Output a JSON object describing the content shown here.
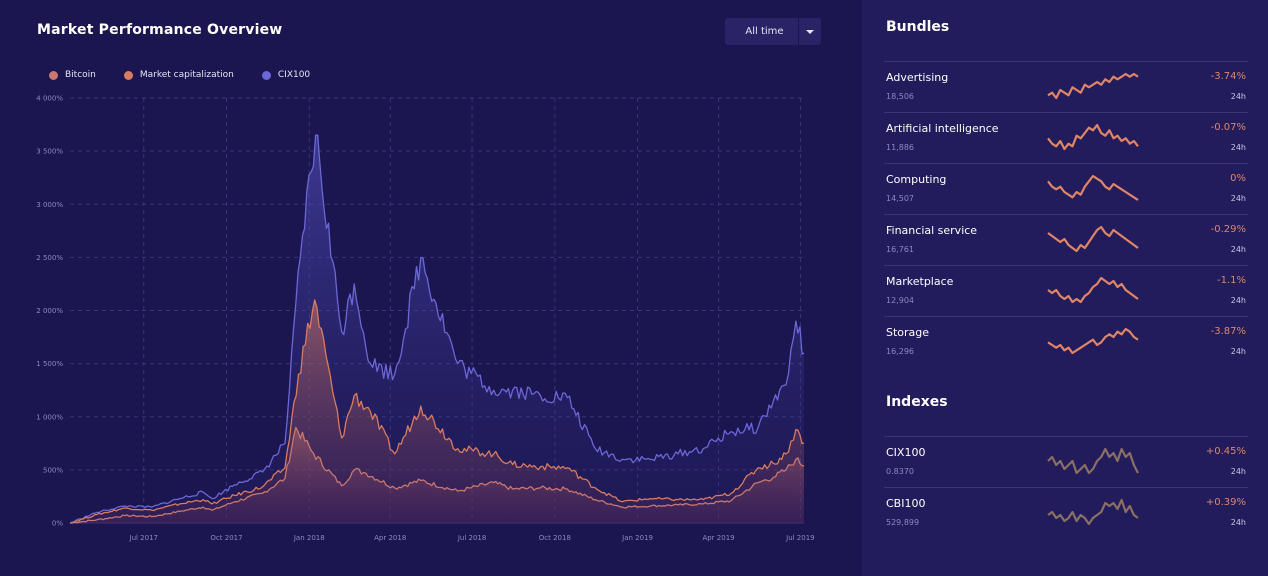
{
  "chart_title": "Market Performance Overview",
  "range_select": {
    "selected": "All time"
  },
  "colors": {
    "bitcoin": "#c9776f",
    "market_cap": "#d97b5e",
    "cix100": "#6b67d6",
    "negative": "#e08566",
    "muted_spark": "#8a6f63"
  },
  "chart_data": {
    "type": "line",
    "title": "Market Performance Overview",
    "xlabel": "",
    "ylabel": "",
    "ylim": [
      0,
      4000
    ],
    "y_unit": "%",
    "y_ticks": [
      "0%",
      "500%",
      "1 000%",
      "1 500%",
      "2 000%",
      "2 500%",
      "3 000%",
      "3 500%",
      "4 000%"
    ],
    "y_tick_values": [
      0,
      500,
      1000,
      1500,
      2000,
      2500,
      3000,
      3500,
      4000
    ],
    "x_ticks": [
      "Jul 2017",
      "Oct 2017",
      "Jan 2018",
      "Apr 2018",
      "Jul 2018",
      "Oct 2018",
      "Jan 2019",
      "Apr 2019",
      "Jul 2019"
    ],
    "x_tick_dates": [
      "2017-07-01",
      "2017-10-01",
      "2018-01-01",
      "2018-04-01",
      "2018-07-01",
      "2018-10-01",
      "2019-01-01",
      "2019-04-01",
      "2019-07-01"
    ],
    "x_range": [
      "2017-04-10",
      "2019-07-05"
    ],
    "grid": true,
    "legend_position": "top-left",
    "series": [
      {
        "name": "Bitcoin",
        "x": [
          "2017-04-10",
          "2017-05-10",
          "2017-06-10",
          "2017-07-10",
          "2017-08-10",
          "2017-09-05",
          "2017-09-15",
          "2017-10-10",
          "2017-11-10",
          "2017-12-05",
          "2017-12-17",
          "2018-01-06",
          "2018-02-06",
          "2018-02-20",
          "2018-03-05",
          "2018-04-06",
          "2018-05-05",
          "2018-06-15",
          "2018-07-25",
          "2018-08-15",
          "2018-09-15",
          "2018-10-15",
          "2018-11-15",
          "2018-12-15",
          "2019-01-15",
          "2019-02-15",
          "2019-03-15",
          "2019-04-15",
          "2019-05-15",
          "2019-06-01",
          "2019-06-15",
          "2019-06-26",
          "2019-07-05"
        ],
        "y": [
          0,
          30,
          70,
          60,
          110,
          150,
          120,
          200,
          280,
          420,
          900,
          650,
          350,
          500,
          470,
          330,
          400,
          300,
          380,
          320,
          330,
          320,
          220,
          150,
          160,
          170,
          180,
          210,
          380,
          430,
          500,
          600,
          540
        ]
      },
      {
        "name": "Market capitalization",
        "x": [
          "2017-04-10",
          "2017-05-10",
          "2017-06-10",
          "2017-07-10",
          "2017-08-10",
          "2017-09-05",
          "2017-09-15",
          "2017-10-10",
          "2017-11-10",
          "2017-12-05",
          "2017-12-20",
          "2018-01-07",
          "2018-02-06",
          "2018-02-20",
          "2018-03-10",
          "2018-04-06",
          "2018-05-05",
          "2018-06-15",
          "2018-07-25",
          "2018-08-15",
          "2018-09-15",
          "2018-10-15",
          "2018-11-15",
          "2018-12-15",
          "2019-01-15",
          "2019-02-15",
          "2019-03-15",
          "2019-04-15",
          "2019-05-15",
          "2019-06-01",
          "2019-06-15",
          "2019-06-26",
          "2019-07-05"
        ],
        "y": [
          0,
          80,
          140,
          120,
          180,
          220,
          180,
          260,
          340,
          520,
          1400,
          2100,
          800,
          1200,
          1050,
          650,
          1100,
          700,
          650,
          550,
          530,
          520,
          330,
          200,
          230,
          220,
          220,
          280,
          520,
          560,
          650,
          880,
          750
        ]
      },
      {
        "name": "CIX100",
        "x": [
          "2017-04-10",
          "2017-05-10",
          "2017-06-10",
          "2017-07-10",
          "2017-08-10",
          "2017-09-05",
          "2017-09-15",
          "2017-10-10",
          "2017-11-10",
          "2017-12-05",
          "2017-12-22",
          "2018-01-08",
          "2018-02-06",
          "2018-02-20",
          "2018-03-10",
          "2018-04-06",
          "2018-05-05",
          "2018-06-15",
          "2018-07-25",
          "2018-08-15",
          "2018-09-15",
          "2018-10-15",
          "2018-11-15",
          "2018-12-15",
          "2019-01-15",
          "2019-02-15",
          "2019-03-15",
          "2019-04-15",
          "2019-05-15",
          "2019-06-01",
          "2019-06-15",
          "2019-06-26",
          "2019-07-05"
        ],
        "y": [
          0,
          100,
          160,
          150,
          230,
          290,
          230,
          360,
          480,
          750,
          2500,
          3650,
          1800,
          2250,
          1500,
          1400,
          2500,
          1500,
          1250,
          1250,
          1200,
          1180,
          700,
          600,
          600,
          650,
          700,
          860,
          900,
          1150,
          1300,
          1900,
          1600
        ]
      }
    ]
  },
  "bundles": {
    "title": "Bundles",
    "items": [
      {
        "name": "Advertising",
        "value": "18,506",
        "change": "-3.74%",
        "period": "24h",
        "spark": [
          5,
          6,
          4,
          7,
          6,
          5,
          8,
          7,
          6,
          9,
          8,
          9,
          10,
          9,
          11,
          10,
          12,
          11,
          12,
          13,
          12,
          13,
          12
        ],
        "spark_color": "#e08566"
      },
      {
        "name": "Artificial intelligence",
        "value": "11,886",
        "change": "-0.07%",
        "period": "24h",
        "spark": [
          8,
          6,
          5,
          7,
          4,
          6,
          5,
          9,
          8,
          10,
          12,
          11,
          13,
          10,
          9,
          11,
          8,
          9,
          7,
          8,
          6,
          7,
          5
        ],
        "spark_color": "#e08566"
      },
      {
        "name": "Computing",
        "value": "14,507",
        "change": "0%",
        "period": "24h",
        "spark": [
          12,
          10,
          9,
          10,
          8,
          7,
          6,
          8,
          7,
          10,
          12,
          14,
          13,
          12,
          10,
          9,
          11,
          10,
          9,
          8,
          7,
          6,
          5
        ],
        "spark_color": "#e08566"
      },
      {
        "name": "Financial service",
        "value": "16,761",
        "change": "-0.29%",
        "period": "24h",
        "spark": [
          11,
          10,
          9,
          8,
          9,
          7,
          6,
          5,
          7,
          6,
          8,
          10,
          12,
          13,
          11,
          10,
          12,
          11,
          10,
          9,
          8,
          7,
          6
        ],
        "spark_color": "#e08566"
      },
      {
        "name": "Marketplace",
        "value": "12,904",
        "change": "-1.1%",
        "period": "24h",
        "spark": [
          9,
          8,
          9,
          7,
          6,
          7,
          5,
          6,
          5,
          7,
          8,
          10,
          11,
          13,
          12,
          11,
          12,
          10,
          11,
          9,
          8,
          7,
          6
        ],
        "spark_color": "#e08566"
      },
      {
        "name": "Storage",
        "value": "16,296",
        "change": "-3.87%",
        "period": "24h",
        "spark": [
          8,
          7,
          6,
          7,
          5,
          6,
          4,
          5,
          6,
          7,
          8,
          9,
          7,
          8,
          10,
          11,
          10,
          12,
          11,
          13,
          12,
          10,
          9
        ],
        "spark_color": "#e08566"
      }
    ]
  },
  "indexes": {
    "title": "Indexes",
    "items": [
      {
        "name": "CIX100",
        "value": "0.8370",
        "change": "+0.45%",
        "period": "24h",
        "spark": [
          9,
          10,
          8,
          9,
          7,
          8,
          9,
          6,
          7,
          8,
          6,
          7,
          9,
          10,
          12,
          10,
          11,
          9,
          12,
          10,
          11,
          8,
          6
        ],
        "spark_color": "#8a6f63"
      },
      {
        "name": "CBI100",
        "value": "529,899",
        "change": "+0.39%",
        "period": "24h",
        "spark": [
          8,
          9,
          7,
          8,
          6,
          7,
          9,
          6,
          8,
          7,
          5,
          7,
          8,
          9,
          12,
          11,
          12,
          10,
          13,
          9,
          11,
          8,
          7
        ],
        "spark_color": "#8a6f63"
      }
    ]
  }
}
